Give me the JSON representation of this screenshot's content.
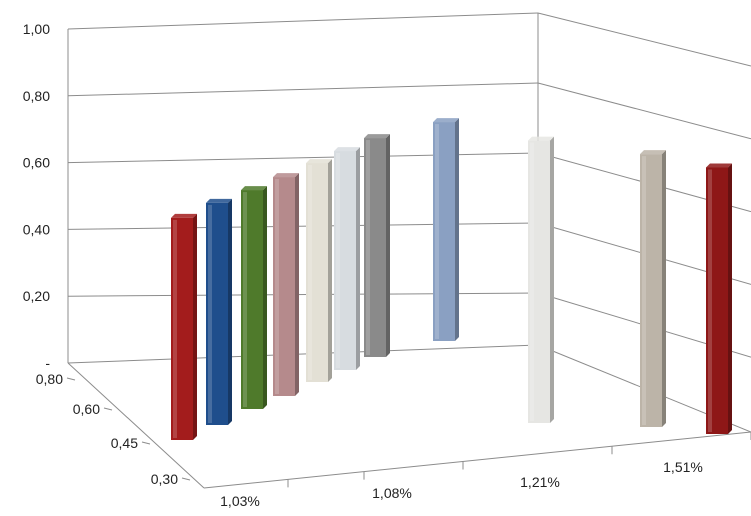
{
  "chart_data": {
    "type": "bar",
    "title": "",
    "grid": true,
    "z_unit": "value",
    "y_tick_labels": [
      "-",
      "0,20",
      "0,40",
      "0,60",
      "0,80",
      "1,00"
    ],
    "y_ticks": [
      0,
      0.2,
      0.4,
      0.6,
      0.8,
      1.0
    ],
    "ylim": [
      0,
      1.0
    ],
    "x_tick_labels": [
      "1,03%",
      "1,08%",
      "1,21%",
      "1,51%"
    ],
    "depth_tick_labels": [
      "0,80",
      "0,60",
      "0,45",
      "0,30"
    ],
    "bars": [
      {
        "x": "1,03%",
        "depth": "0,30",
        "value": 0.7,
        "color": "#a31c1c"
      },
      {
        "x": "1,03%",
        "depth": "0,45",
        "value": 0.7,
        "color": "#1f4e8c"
      },
      {
        "x": "1,03%",
        "depth": "0,60",
        "value": 0.69,
        "color": "#4f7a2b"
      },
      {
        "x": "1,03%",
        "depth": "0,80",
        "value": 0.69,
        "color": "#b58a8c"
      },
      {
        "x": "1,08%",
        "depth": "0,30",
        "value": 0.69,
        "color": "#e3e0d5"
      },
      {
        "x": "1,08%",
        "depth": "0,45",
        "value": 0.69,
        "color": "#d7dce0"
      },
      {
        "x": "1,08%",
        "depth": "0,60",
        "value": 0.69,
        "color": "#8a8a8a"
      },
      {
        "x": "1,08%",
        "depth": "0,80",
        "value": 0.69,
        "color": "#8aa0c2"
      },
      {
        "x": "1,21%",
        "depth": "0,30",
        "value": 0.89,
        "color": "#e6e6e3"
      },
      {
        "x": "1,51%",
        "depth": "0,30",
        "value": 0.86,
        "color": "#bcb4a8"
      },
      {
        "x": "1,51%",
        "depth": "0,45",
        "value": 0.84,
        "color": "#8e1717"
      }
    ]
  }
}
